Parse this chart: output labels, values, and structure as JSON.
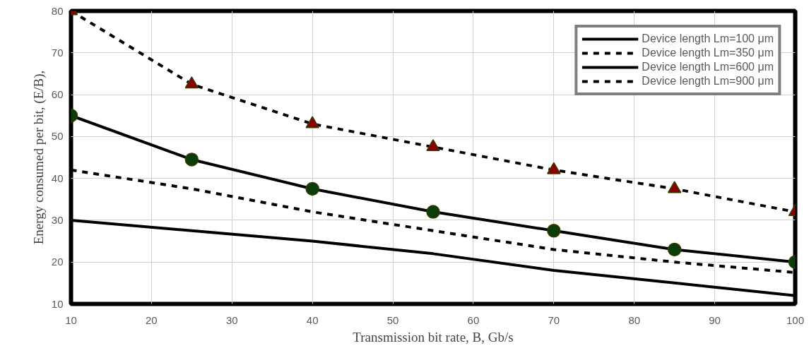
{
  "chart_data": {
    "type": "line",
    "xlabel": "Transmission bit rate, B, Gb/s",
    "ylabel": "Energy consumed per bit, (E/B),",
    "x": [
      10,
      25,
      40,
      55,
      70,
      85,
      100
    ],
    "series": [
      {
        "name": "Device length Lm=100 μm",
        "color": "#000000",
        "line_style": "solid",
        "values": [
          30,
          27.5,
          25,
          22,
          18,
          15,
          12
        ]
      },
      {
        "name": "Device length Lm=350 μm",
        "color": "#010101",
        "line_style": "dashed",
        "values": [
          42,
          37.5,
          32,
          27.5,
          23,
          20,
          17.5
        ]
      },
      {
        "name": "Device length Lm=600 μm",
        "color": "#020202",
        "line_style": "solid",
        "values": [
          55,
          44.5,
          37.5,
          32,
          27.5,
          23,
          20
        ]
      },
      {
        "type": "scatter",
        "color": "#0a3d0a",
        "marker": "circle",
        "values": [
          55,
          44.5,
          37.5,
          32,
          27.5,
          23,
          20
        ]
      },
      {
        "name": "Device length Lm=900 μm",
        "color": "#030303",
        "line_style": "dashed",
        "values": [
          80,
          62.5,
          53,
          47.5,
          42,
          37.5,
          32
        ]
      },
      {
        "type": "scatter",
        "color": "#8b0000",
        "marker": "triangle",
        "values": [
          80,
          62.5,
          53,
          47.5,
          42,
          37.5,
          32
        ]
      }
    ],
    "xlim": [
      10,
      100
    ],
    "ylim": [
      10,
      80
    ],
    "xticks": [
      10,
      20,
      30,
      40,
      50,
      60,
      70,
      80,
      90,
      100
    ],
    "yticks": [
      10,
      20,
      30,
      40,
      50,
      60,
      70,
      80
    ],
    "grid": true,
    "legend": "top right"
  }
}
